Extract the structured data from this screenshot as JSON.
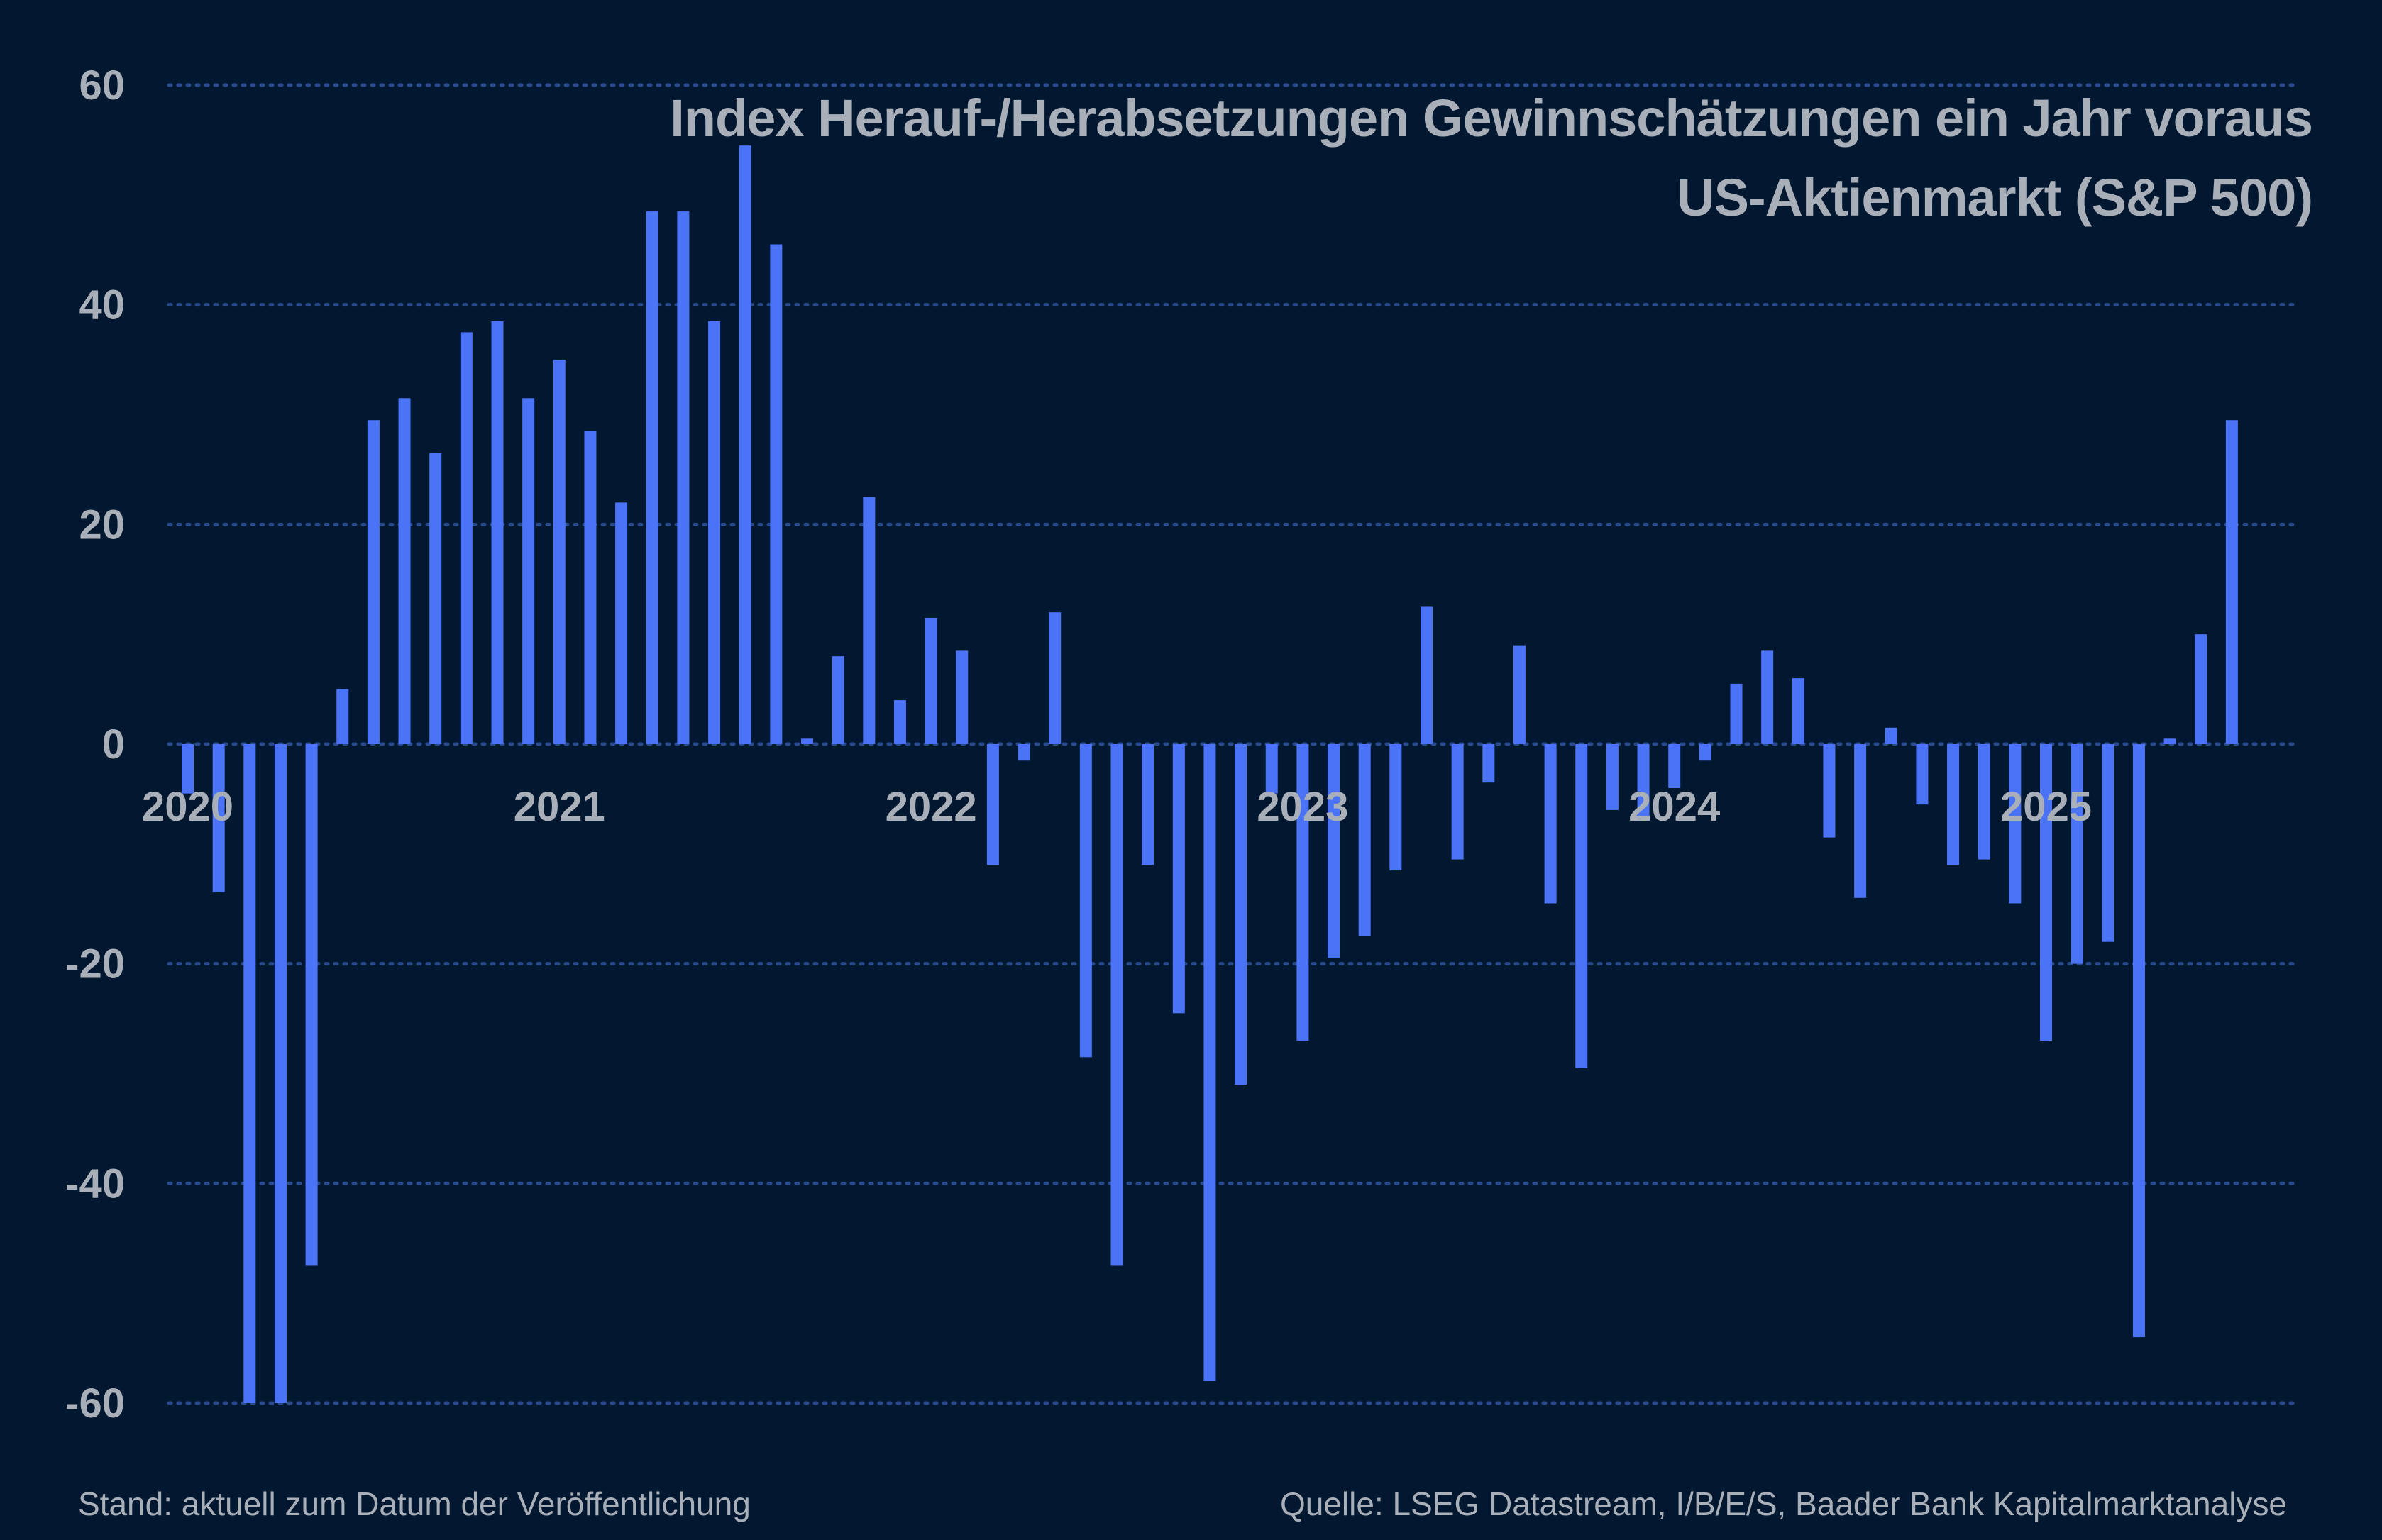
{
  "chart_data": {
    "type": "bar",
    "title": "Index Herauf-/Herabsetzungen Gewinnschätzungen ein Jahr voraus",
    "subtitle": "US-Aktienmarkt (S&P 500)",
    "xlabel": "",
    "ylabel": "",
    "ylim": [
      -60,
      60
    ],
    "yticks": [
      "60",
      "40",
      "20",
      "0",
      "-20",
      "-40",
      "-60"
    ],
    "ytick_values": [
      60,
      40,
      20,
      0,
      -20,
      -40,
      -60
    ],
    "grid": "horizontal-dotted",
    "x_start": "2020-01",
    "x_tick_labels": [
      {
        "label": "2020",
        "index": 0
      },
      {
        "label": "2021",
        "index": 12
      },
      {
        "label": "2022",
        "index": 24
      },
      {
        "label": "2023",
        "index": 36
      },
      {
        "label": "2024",
        "index": 48
      },
      {
        "label": "2025",
        "index": 60
      }
    ],
    "series": [
      {
        "name": "Index Herauf-/Herabsetzungen",
        "values": [
          -4.5,
          -13.5,
          -60,
          -60,
          -47.5,
          5,
          29.5,
          31.5,
          26.5,
          37.5,
          38.5,
          31.5,
          35,
          28.5,
          22,
          48.5,
          48.5,
          38.5,
          54.5,
          45.5,
          0.5,
          8,
          22.5,
          4,
          11.5,
          8.5,
          -11,
          -1.5,
          12,
          -28.5,
          -47.5,
          -11,
          -24.5,
          -58,
          -31,
          -4.5,
          -27,
          -19.5,
          -17.5,
          -11.5,
          12.5,
          -10.5,
          -3.5,
          9,
          -14.5,
          -29.5,
          -6,
          -7,
          -4,
          -1.5,
          5.5,
          8.5,
          6,
          -8.5,
          -14,
          1.5,
          -5.5,
          -11,
          -10.5,
          -14.5,
          -27,
          -20,
          -18,
          -54,
          0.5,
          10,
          29.5
        ]
      }
    ],
    "colors": {
      "background": "#021830",
      "bar": "#4a74f5",
      "grid": "#2a4a8e",
      "text": "#a9afb8"
    }
  },
  "footer": {
    "left": "Stand: aktuell zum Datum der Veröffentlichung",
    "right": "Quelle: LSEG Datastream, I/B/E/S, Baader Bank Kapitalmarktanalyse"
  }
}
